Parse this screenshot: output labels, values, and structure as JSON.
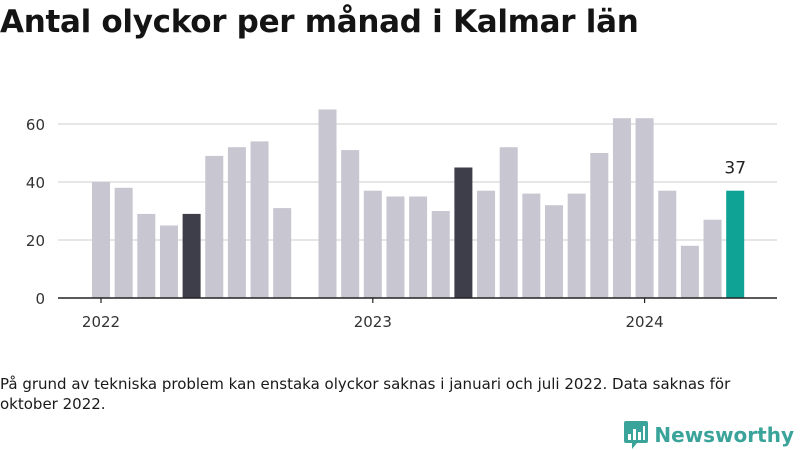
{
  "title": "Antal olyckor per månad i Kalmar län",
  "note": "På grund av tekniska problem kan enstaka olyckor saknas i januari och juli 2022. Data saknas för oktober 2022.",
  "brand": {
    "name": "Newsworthy",
    "color": "#3aa39a",
    "icon": "bar-chart-speech-bubble-icon"
  },
  "colors": {
    "bar": "#c8c6d0",
    "highlight": "#3e3d4a",
    "latest": "#0fa396",
    "grid": "#dddddd",
    "axis": "#222222"
  },
  "chart_data": {
    "type": "bar",
    "title": "Antal olyckor per månad i Kalmar län",
    "xlabel": "",
    "ylabel": "",
    "ylim": [
      0,
      70
    ],
    "yticks": [
      0,
      20,
      40,
      60
    ],
    "xtick_labels": [
      {
        "label": "2022",
        "month": "2022-01"
      },
      {
        "label": "2023",
        "month": "2023-01"
      },
      {
        "label": "2024",
        "month": "2024-01"
      }
    ],
    "grid": true,
    "data_labels": [
      {
        "month": "2024-05",
        "text": "37"
      }
    ],
    "series": [
      {
        "values": [
          {
            "month": "2022-01",
            "value": 40,
            "style": "bar"
          },
          {
            "month": "2022-02",
            "value": 38,
            "style": "bar"
          },
          {
            "month": "2022-03",
            "value": 29,
            "style": "bar"
          },
          {
            "month": "2022-04",
            "value": 25,
            "style": "bar"
          },
          {
            "month": "2022-05",
            "value": 29,
            "style": "highlight"
          },
          {
            "month": "2022-06",
            "value": 49,
            "style": "bar"
          },
          {
            "month": "2022-07",
            "value": 52,
            "style": "bar"
          },
          {
            "month": "2022-08",
            "value": 54,
            "style": "bar"
          },
          {
            "month": "2022-09",
            "value": 31,
            "style": "bar"
          },
          {
            "month": "2022-10",
            "value": null,
            "style": "bar"
          },
          {
            "month": "2022-11",
            "value": 65,
            "style": "bar"
          },
          {
            "month": "2022-12",
            "value": 51,
            "style": "bar"
          },
          {
            "month": "2023-01",
            "value": 37,
            "style": "bar"
          },
          {
            "month": "2023-02",
            "value": 35,
            "style": "bar"
          },
          {
            "month": "2023-03",
            "value": 35,
            "style": "bar"
          },
          {
            "month": "2023-04",
            "value": 30,
            "style": "bar"
          },
          {
            "month": "2023-05",
            "value": 45,
            "style": "highlight"
          },
          {
            "month": "2023-06",
            "value": 37,
            "style": "bar"
          },
          {
            "month": "2023-07",
            "value": 52,
            "style": "bar"
          },
          {
            "month": "2023-08",
            "value": 36,
            "style": "bar"
          },
          {
            "month": "2023-09",
            "value": 32,
            "style": "bar"
          },
          {
            "month": "2023-10",
            "value": 36,
            "style": "bar"
          },
          {
            "month": "2023-11",
            "value": 50,
            "style": "bar"
          },
          {
            "month": "2023-12",
            "value": 62,
            "style": "bar"
          },
          {
            "month": "2024-01",
            "value": 62,
            "style": "bar"
          },
          {
            "month": "2024-02",
            "value": 37,
            "style": "bar"
          },
          {
            "month": "2024-03",
            "value": 18,
            "style": "bar"
          },
          {
            "month": "2024-04",
            "value": 27,
            "style": "bar"
          },
          {
            "month": "2024-05",
            "value": 37,
            "style": "latest"
          }
        ]
      }
    ]
  }
}
